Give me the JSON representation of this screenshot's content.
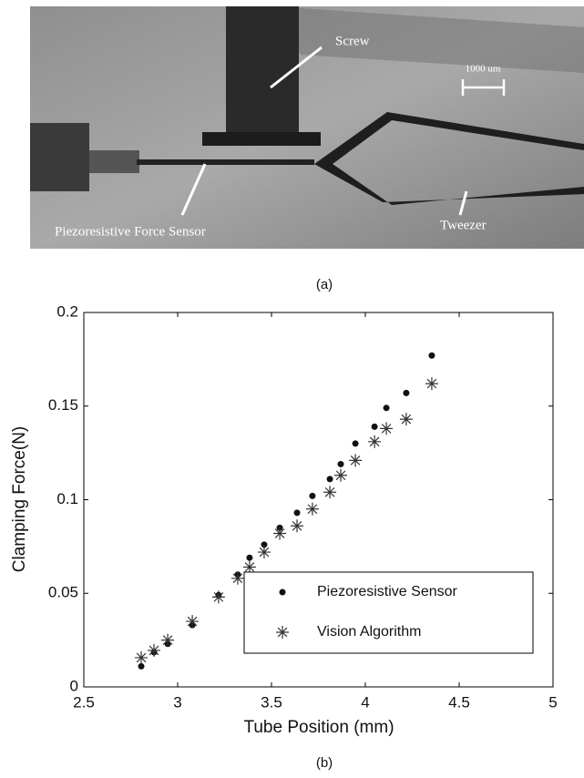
{
  "photo": {
    "labels": [
      "Screw",
      "1000 um",
      "Piezoresistive Force Sensor",
      "Tweezer"
    ],
    "caption": "(a)"
  },
  "chart_data": {
    "type": "scatter",
    "caption": "(b)",
    "x_label": "Tube Position (mm)",
    "y_label": "Clamping Force(N)",
    "x": [
      2.806,
      2.874,
      2.947,
      3.078,
      3.218,
      3.32,
      3.383,
      3.461,
      3.544,
      3.636,
      3.718,
      3.811,
      3.869,
      3.947,
      4.049,
      4.112,
      4.218,
      4.354
    ],
    "series": [
      {
        "name": "Piezoresistive Sensor",
        "marker": "dot",
        "color": "#111111",
        "values": [
          0.011,
          0.0185,
          0.023,
          0.033,
          0.049,
          0.06,
          0.069,
          0.076,
          0.085,
          0.093,
          0.102,
          0.111,
          0.119,
          0.13,
          0.139,
          0.149,
          0.157,
          0.177
        ]
      },
      {
        "name": "Vision Algorithm",
        "marker": "star",
        "color": "#333333",
        "values": [
          0.0156,
          0.0195,
          0.025,
          0.035,
          0.048,
          0.058,
          0.064,
          0.072,
          0.082,
          0.086,
          0.095,
          0.104,
          0.113,
          0.121,
          0.131,
          0.138,
          0.143,
          0.162
        ]
      }
    ],
    "xlim": [
      2.5,
      5
    ],
    "xticks": [
      2.5,
      3,
      3.5,
      4,
      4.5,
      5
    ],
    "ylim": [
      0,
      0.2
    ],
    "yticks": [
      0,
      0.05,
      0.1,
      0.15,
      0.2
    ],
    "legend": "lower right",
    "grid": false
  }
}
